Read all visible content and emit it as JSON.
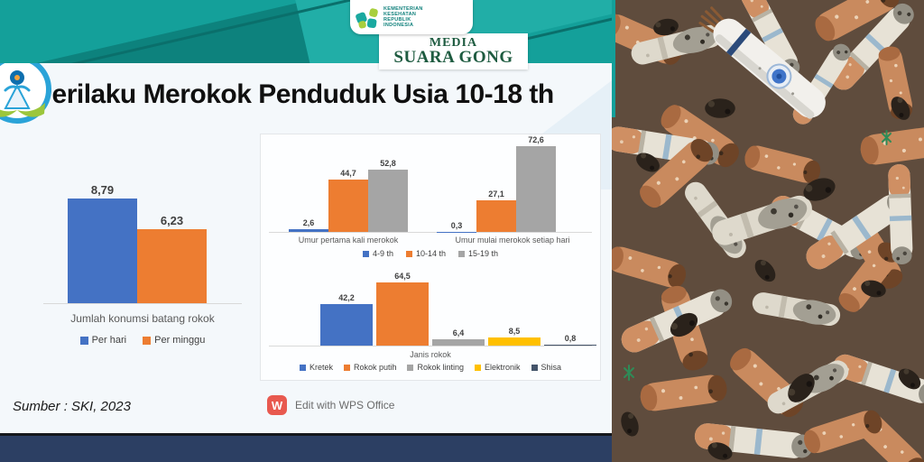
{
  "header": {
    "ministry_logo_lines": [
      "KEMENTERIAN",
      "KESEHATAN",
      "REPUBLIK",
      "INDONESIA"
    ],
    "media_line1": "MEDIA",
    "media_line2": "SUARA GONG"
  },
  "slide": {
    "title": "Perilaku Merokok Penduduk Usia 10-18 th",
    "source": "Sumber : SKI, 2023",
    "wps_label": "Edit with WPS Office",
    "wps_letter": "W"
  },
  "colors": {
    "teal_header": "#14a09a",
    "navy_footer": "#2c3f63",
    "wps_red": "#e8594f",
    "media_green": "#1e5b40",
    "bar_blue": "#4472c4",
    "bar_orange": "#ed7d31",
    "bar_gray": "#a5a5a5",
    "bar_yellow": "#ffc000",
    "bar_darkblue": "#44546a"
  },
  "chart_data": [
    {
      "type": "bar",
      "title": "Jumlah konumsi batang rokok",
      "categories": [
        "Per hari",
        "Per minggu"
      ],
      "values": [
        8.79,
        6.23
      ],
      "value_labels": [
        "8,79",
        "6,23"
      ],
      "colors": [
        "#4472c4",
        "#ed7d31"
      ],
      "legend": [
        {
          "label": "Per hari",
          "color": "#4472c4"
        },
        {
          "label": "Per minggu",
          "color": "#ed7d31"
        }
      ],
      "ylim": [
        0,
        9
      ],
      "grid": false,
      "legend_position": "bottom"
    },
    {
      "type": "bar",
      "title": "",
      "categories": [
        "Umur pertama kali merokok",
        "Umur mulai merokok setiap hari"
      ],
      "series": [
        {
          "name": "4-9 th",
          "color": "#4472c4",
          "values": [
            2.6,
            0.3
          ],
          "value_labels": [
            "2,6",
            "0,3"
          ]
        },
        {
          "name": "10-14 th",
          "color": "#ed7d31",
          "values": [
            44.7,
            27.1
          ],
          "value_labels": [
            "44,7",
            "27,1"
          ]
        },
        {
          "name": "15-19 th",
          "color": "#a5a5a5",
          "values": [
            52.8,
            72.6
          ],
          "value_labels": [
            "52,8",
            "72,6"
          ]
        }
      ],
      "legend": [
        {
          "label": "4-9 th",
          "color": "#4472c4"
        },
        {
          "label": "10-14 th",
          "color": "#ed7d31"
        },
        {
          "label": "15-19 th",
          "color": "#a5a5a5"
        }
      ],
      "ylim": [
        0,
        80
      ],
      "grid": false,
      "legend_position": "bottom"
    },
    {
      "type": "bar",
      "title": "Janis rokok",
      "categories": [
        "Kretek",
        "Rokok putih",
        "Rokok linting",
        "Elektronik",
        "Shisa"
      ],
      "values": [
        42.2,
        64.5,
        6.4,
        8.5,
        0.8
      ],
      "value_labels": [
        "42,2",
        "64,5",
        "6,4",
        "8,5",
        "0,8"
      ],
      "colors": [
        "#4472c4",
        "#ed7d31",
        "#a5a5a5",
        "#ffc000",
        "#44546a"
      ],
      "legend": [
        {
          "label": "Kretek",
          "color": "#4472c4"
        },
        {
          "label": "Rokok putih",
          "color": "#ed7d31"
        },
        {
          "label": "Rokok linting",
          "color": "#a5a5a5"
        },
        {
          "label": "Elektronik",
          "color": "#ffc000"
        },
        {
          "label": "Shisa",
          "color": "#44546a"
        }
      ],
      "ylim": [
        0,
        70
      ],
      "grid": false,
      "legend_position": "bottom"
    }
  ]
}
